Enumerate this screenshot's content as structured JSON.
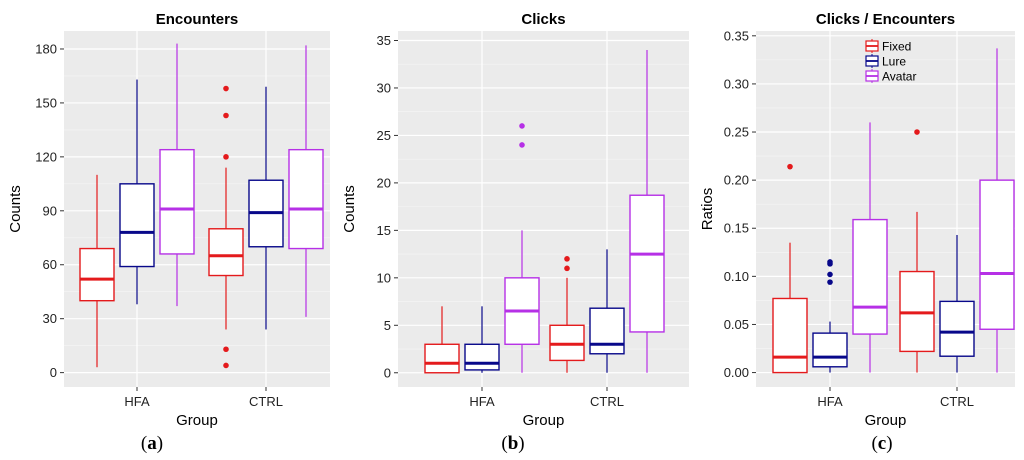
{
  "chart_data": [
    {
      "type": "boxplot",
      "title": "Encounters",
      "xlabel": "Group",
      "ylabel": "Counts",
      "ylim": [
        -8,
        190
      ],
      "yticks": [
        0,
        30,
        60,
        90,
        120,
        150,
        180
      ],
      "ytick_labels": [
        "0",
        "30",
        "60",
        "90",
        "120",
        "150",
        "180"
      ],
      "categories": [
        "HFA",
        "CTRL"
      ],
      "grid": true,
      "series": [
        {
          "name": "Fixed",
          "color": "#e41a1c",
          "boxes": [
            {
              "min": 3,
              "q1": 40,
              "median": 52,
              "q3": 69,
              "max": 110,
              "outliers": []
            },
            {
              "min": 24,
              "q1": 54,
              "median": 65,
              "q3": 80,
              "max": 114,
              "outliers": [
                4,
                13,
                120,
                143,
                158
              ]
            }
          ]
        },
        {
          "name": "Lure",
          "color": "#08088a",
          "boxes": [
            {
              "min": 38,
              "q1": 59,
              "median": 78,
              "q3": 105,
              "max": 163,
              "outliers": []
            },
            {
              "min": 24,
              "q1": 70,
              "median": 89,
              "q3": 107,
              "max": 159,
              "outliers": []
            }
          ]
        },
        {
          "name": "Avatar",
          "color": "#b630e6",
          "boxes": [
            {
              "min": 37,
              "q1": 66,
              "median": 91,
              "q3": 124,
              "max": 183,
              "outliers": []
            },
            {
              "min": 31,
              "q1": 69,
              "median": 91,
              "q3": 124,
              "max": 182,
              "outliers": []
            }
          ]
        }
      ]
    },
    {
      "type": "boxplot",
      "title": "Clicks",
      "xlabel": "Group",
      "ylabel": "Counts",
      "ylim": [
        -1.5,
        36
      ],
      "yticks": [
        0,
        5,
        10,
        15,
        20,
        25,
        30,
        35
      ],
      "ytick_labels": [
        "0",
        "5",
        "10",
        "15",
        "20",
        "25",
        "30",
        "35"
      ],
      "categories": [
        "HFA",
        "CTRL"
      ],
      "grid": true,
      "series": [
        {
          "name": "Fixed",
          "color": "#e41a1c",
          "boxes": [
            {
              "min": 0,
              "q1": 0,
              "median": 1,
              "q3": 3,
              "max": 7,
              "outliers": []
            },
            {
              "min": 0,
              "q1": 1.3,
              "median": 3,
              "q3": 5,
              "max": 10,
              "outliers": [
                11,
                12
              ]
            }
          ]
        },
        {
          "name": "Lure",
          "color": "#08088a",
          "boxes": [
            {
              "min": 0,
              "q1": 0.3,
              "median": 1,
              "q3": 3,
              "max": 7,
              "outliers": []
            },
            {
              "min": 0,
              "q1": 2,
              "median": 3,
              "q3": 6.8,
              "max": 13,
              "outliers": []
            }
          ]
        },
        {
          "name": "Avatar",
          "color": "#b630e6",
          "boxes": [
            {
              "min": 0,
              "q1": 3,
              "median": 6.5,
              "q3": 10,
              "max": 15,
              "outliers": [
                24,
                26
              ]
            },
            {
              "min": 0,
              "q1": 4.3,
              "median": 12.5,
              "q3": 18.7,
              "max": 34,
              "outliers": []
            }
          ]
        }
      ]
    },
    {
      "type": "boxplot",
      "title": "Clicks / Encounters",
      "xlabel": "Group",
      "ylabel": "Ratios",
      "ylim": [
        -0.015,
        0.355
      ],
      "yticks": [
        0,
        0.05,
        0.1,
        0.15,
        0.2,
        0.25,
        0.3,
        0.35
      ],
      "ytick_labels": [
        "0.00",
        "0.05",
        "0.10",
        "0.15",
        "0.20",
        "0.25",
        "0.30",
        "0.35"
      ],
      "categories": [
        "HFA",
        "CTRL"
      ],
      "grid": true,
      "legend": {
        "position": "top-right",
        "items": [
          "Fixed",
          "Lure",
          "Avatar"
        ]
      },
      "series": [
        {
          "name": "Fixed",
          "color": "#e41a1c",
          "boxes": [
            {
              "min": 0,
              "q1": 0,
              "median": 0.016,
              "q3": 0.077,
              "max": 0.135,
              "outliers": [
                0.214
              ]
            },
            {
              "min": 0,
              "q1": 0.022,
              "median": 0.062,
              "q3": 0.105,
              "max": 0.167,
              "outliers": [
                0.25
              ]
            }
          ]
        },
        {
          "name": "Lure",
          "color": "#08088a",
          "boxes": [
            {
              "min": 0,
              "q1": 0.006,
              "median": 0.016,
              "q3": 0.041,
              "max": 0.053,
              "outliers": [
                0.094,
                0.102,
                0.113,
                0.115
              ]
            },
            {
              "min": 0,
              "q1": 0.017,
              "median": 0.042,
              "q3": 0.074,
              "max": 0.143,
              "outliers": []
            }
          ]
        },
        {
          "name": "Avatar",
          "color": "#b630e6",
          "boxes": [
            {
              "min": 0,
              "q1": 0.04,
              "median": 0.068,
              "q3": 0.159,
              "max": 0.26,
              "outliers": []
            },
            {
              "min": 0,
              "q1": 0.045,
              "median": 0.103,
              "q3": 0.2,
              "max": 0.337,
              "outliers": []
            }
          ]
        }
      ]
    }
  ],
  "captions": [
    {
      "open": "(",
      "letter": "a",
      "close": ")"
    },
    {
      "open": "(",
      "letter": "b",
      "close": ")"
    },
    {
      "open": "(",
      "letter": "c",
      "close": ")"
    }
  ]
}
